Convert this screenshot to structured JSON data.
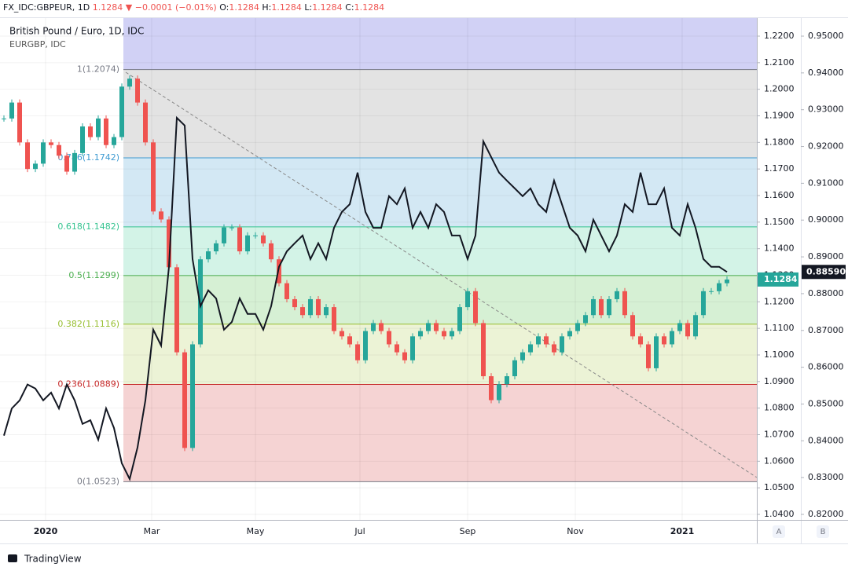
{
  "header": {
    "symbol": "FX_IDC:GBPEUR, 1D",
    "price": "1.1284",
    "change": "▼ −0.0001 (−0.01%)",
    "ohlc": [
      {
        "key": "O:",
        "value": "1.1284"
      },
      {
        "key": "H:",
        "value": "1.1284"
      },
      {
        "key": "L:",
        "value": "1.1284"
      },
      {
        "key": "C:",
        "value": "1.1284"
      }
    ]
  },
  "chart_data": {
    "type": "candlestick",
    "legend": [
      "British Pound / Euro, 1D, IDC",
      "EURGBP, IDC"
    ],
    "x_tick_labels": [
      "2020",
      "Mar",
      "May",
      "Jul",
      "Sep",
      "Nov",
      "2021"
    ],
    "ylim": [
      1.04,
      1.22
    ],
    "yticks": [
      {
        "value": 1.04,
        "label": "1.0400"
      },
      {
        "value": 1.05,
        "label": "1.0500"
      },
      {
        "value": 1.06,
        "label": "1.0600"
      },
      {
        "value": 1.07,
        "label": "1.0700"
      },
      {
        "value": 1.08,
        "label": "1.0800"
      },
      {
        "value": 1.09,
        "label": "1.0900"
      },
      {
        "value": 1.1,
        "label": "1.1000"
      },
      {
        "value": 1.11,
        "label": "1.1100"
      },
      {
        "value": 1.12,
        "label": "1.1200"
      },
      {
        "value": 1.13,
        "label": "1.1300"
      },
      {
        "value": 1.14,
        "label": "1.1400"
      },
      {
        "value": 1.15,
        "label": "1.1500"
      },
      {
        "value": 1.16,
        "label": "1.1600"
      },
      {
        "value": 1.17,
        "label": "1.1700"
      },
      {
        "value": 1.18,
        "label": "1.1800"
      },
      {
        "value": 1.19,
        "label": "1.1900"
      },
      {
        "value": 1.2,
        "label": "1.2000"
      },
      {
        "value": 1.21,
        "label": "1.2100"
      },
      {
        "value": 1.22,
        "label": "1.2200"
      }
    ],
    "y2lim": [
      0.82,
      0.95
    ],
    "y2ticks": [
      {
        "value": 0.82,
        "label": "0.82000"
      },
      {
        "value": 0.83,
        "label": "0.83000"
      },
      {
        "value": 0.84,
        "label": "0.84000"
      },
      {
        "value": 0.85,
        "label": "0.85000"
      },
      {
        "value": 0.86,
        "label": "0.86000"
      },
      {
        "value": 0.87,
        "label": "0.87000"
      },
      {
        "value": 0.88,
        "label": "0.88000"
      },
      {
        "value": 0.89,
        "label": "0.89000"
      },
      {
        "value": 0.9,
        "label": "0.90000"
      },
      {
        "value": 0.91,
        "label": "0.91000"
      },
      {
        "value": 0.92,
        "label": "0.92000"
      },
      {
        "value": 0.93,
        "label": "0.93000"
      },
      {
        "value": 0.94,
        "label": "0.94000"
      },
      {
        "value": 0.95,
        "label": "0.95000"
      }
    ],
    "up_color": "#26a69a",
    "down_color": "#ef5350",
    "series": [
      {
        "name": "British Pound / Euro, 1D, IDC",
        "color": "#26a69a",
        "values": [
          1.189,
          1.195,
          1.18,
          1.17,
          1.172,
          1.18,
          1.179,
          1.175,
          1.169,
          1.176,
          1.186,
          1.182,
          1.189,
          1.179,
          1.182,
          1.201,
          1.204,
          1.195,
          1.18,
          1.154,
          1.151,
          1.133,
          1.101,
          1.065,
          1.104,
          1.136,
          1.139,
          1.142,
          1.148,
          1.148,
          1.139,
          1.145,
          1.145,
          1.142,
          1.136,
          1.127,
          1.121,
          1.118,
          1.115,
          1.121,
          1.115,
          1.118,
          1.109,
          1.107,
          1.104,
          1.098,
          1.109,
          1.112,
          1.109,
          1.104,
          1.101,
          1.098,
          1.107,
          1.109,
          1.112,
          1.109,
          1.107,
          1.109,
          1.118,
          1.124,
          1.112,
          1.092,
          1.083,
          1.089,
          1.092,
          1.098,
          1.101,
          1.104,
          1.107,
          1.104,
          1.101,
          1.107,
          1.109,
          1.112,
          1.115,
          1.121,
          1.115,
          1.121,
          1.124,
          1.115,
          1.107,
          1.104,
          1.095,
          1.107,
          1.104,
          1.109,
          1.112,
          1.107,
          1.115,
          1.124,
          1.124,
          1.127,
          1.1284
        ]
      },
      {
        "name": "EURGBP, IDC",
        "color": "#131722",
        "axis": "y2",
        "last_label": "0.88590",
        "values": [
          0.8414,
          0.8488,
          0.851,
          0.8553,
          0.8542,
          0.851,
          0.8531,
          0.8488,
          0.8553,
          0.851,
          0.8446,
          0.8456,
          0.8403,
          0.8488,
          0.8435,
          0.8339,
          0.8296,
          0.8382,
          0.851,
          0.8702,
          0.8659,
          0.8873,
          0.9278,
          0.9257,
          0.8894,
          0.8766,
          0.8809,
          0.8787,
          0.8702,
          0.8723,
          0.8787,
          0.8745,
          0.8745,
          0.8702,
          0.8766,
          0.8873,
          0.8915,
          0.8937,
          0.8958,
          0.8894,
          0.8937,
          0.8894,
          0.8979,
          0.9022,
          0.9043,
          0.9129,
          0.9022,
          0.8979,
          0.8979,
          0.9065,
          0.9043,
          0.9086,
          0.8979,
          0.9022,
          0.8979,
          0.9043,
          0.9022,
          0.8958,
          0.8958,
          0.8894,
          0.8958,
          0.9214,
          0.9171,
          0.9129,
          0.9107,
          0.9086,
          0.9065,
          0.9086,
          0.9043,
          0.9022,
          0.9107,
          0.9043,
          0.8979,
          0.8958,
          0.8915,
          0.9001,
          0.8958,
          0.8915,
          0.8958,
          0.9043,
          0.9022,
          0.9129,
          0.9043,
          0.9043,
          0.9086,
          0.8979,
          0.8958,
          0.9043,
          0.8979,
          0.8894,
          0.8873,
          0.8873,
          0.8859
        ]
      }
    ],
    "fib_top_band_color": "#d1d1f5",
    "fib_levels": [
      {
        "label": "1(1.2074)",
        "value": 1.2074,
        "color": "#787b86",
        "band_color": "#e3e3e3"
      },
      {
        "label": "0.786(1.1742)",
        "value": 1.1742,
        "color": "#3d9ad1",
        "band_color": "#d3e8f4"
      },
      {
        "label": "0.618(1.1482)",
        "value": 1.1482,
        "color": "#34c38f",
        "band_color": "#d3f3e7"
      },
      {
        "label": "0.5(1.1299)",
        "value": 1.1299,
        "color": "#4caf50",
        "band_color": "#d6f0d4"
      },
      {
        "label": "0.382(1.1116)",
        "value": 1.1116,
        "color": "#97be2f",
        "band_color": "#ecf3d6"
      },
      {
        "label": "0.236(1.0889)",
        "value": 1.0889,
        "color": "#c62828",
        "band_color": "#f5d3d3"
      },
      {
        "label": "0(1.0523)",
        "value": 1.0523,
        "color": "#787b86"
      }
    ],
    "buttons": [
      "A",
      "B"
    ],
    "brand": "TradingView"
  }
}
